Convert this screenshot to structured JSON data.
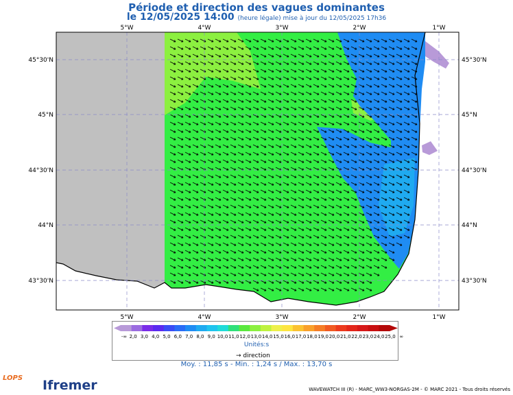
{
  "title": "Période et direction des vagues dominantes",
  "subtitle_main": "le 12/05/2025 14:00",
  "subtitle_note": "(heure légale) mise à jour du 12/05/2025 17h36",
  "lon_labels": [
    "5°W",
    "4°W",
    "3°W",
    "2°W",
    "1°W"
  ],
  "lat_labels": [
    "45°30'N",
    "45°N",
    "44°30'N",
    "44°N",
    "43°30'N"
  ],
  "legend": {
    "left_end": "-∞",
    "right_end": "∞",
    "values": [
      "2,0",
      "3,0",
      "4,0",
      "5,0",
      "6,0",
      "7,0",
      "8,0",
      "9,0",
      "10,0",
      "11,0",
      "12,0",
      "13,0",
      "14,0",
      "15,0",
      "16,0",
      "17,0",
      "18,0",
      "19,0",
      "20,0",
      "21,0",
      "22,0",
      "23,0",
      "24,0",
      "25,0"
    ],
    "colors": [
      "#b89ad8",
      "#9b6ce0",
      "#7a2de8",
      "#5b2bf0",
      "#3a4cf5",
      "#2a6cf6",
      "#1f8cf3",
      "#1faaf0",
      "#1fc4ee",
      "#20dbd8",
      "#2fe07a",
      "#5ae83e",
      "#8cf040",
      "#bff23f",
      "#eef04a",
      "#fde540",
      "#fbc231",
      "#f9a02b",
      "#f57d26",
      "#f15a22",
      "#ec3a1d",
      "#e3261a",
      "#d61818",
      "#c80f10",
      "#b30808"
    ],
    "unit": "Unités:s"
  },
  "direction_label": "direction",
  "stats": "Moy. : 11,85 s   -   Min. : 1,24 s / Max. : 13,70 s",
  "credit": "WAVEWATCH III (R) - MARC_WW3-NORGAS-2M - © MARC 2021 - Tous droits réservés",
  "logos": {
    "lops": "LOPS",
    "ifremer": "Ifremer"
  },
  "colors": {
    "land": "#ffffff",
    "nodata": "#c0c0c0",
    "green": "#33ee44",
    "lightgreen": "#8cf040",
    "blue": "#1f8cf3",
    "lightblue": "#1faaf0"
  }
}
